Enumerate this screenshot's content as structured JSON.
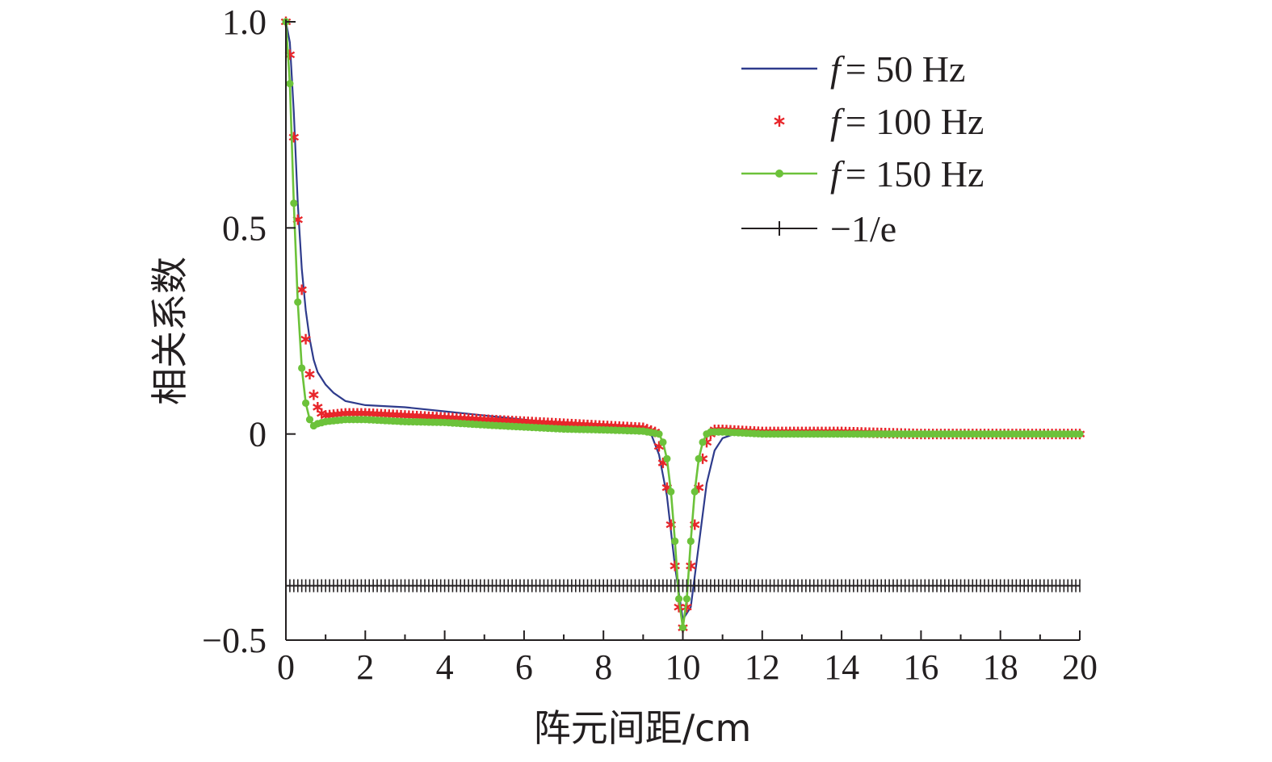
{
  "chart_data": {
    "type": "line",
    "title": "",
    "xlabel": "阵元间距/cm",
    "ylabel": "相关系数",
    "xlim": [
      0,
      20
    ],
    "ylim": [
      -0.5,
      1.0
    ],
    "xticks": [
      "0",
      "2",
      "4",
      "6",
      "8",
      "10",
      "12",
      "14",
      "16",
      "18",
      "20"
    ],
    "yticks": [
      "−0.5",
      "0",
      "0.5",
      "1.0"
    ],
    "legend_position": "top-right",
    "grid": false,
    "series": [
      {
        "name": "f = 50 Hz",
        "name_var": "f",
        "name_rest": "= 50 Hz",
        "color": "#2e3b8c",
        "marker": "none",
        "x": [
          0,
          0.1,
          0.2,
          0.3,
          0.4,
          0.5,
          0.6,
          0.7,
          0.8,
          1.0,
          1.2,
          1.5,
          2,
          3,
          4,
          5,
          6,
          7,
          8,
          9,
          9.2,
          9.4,
          9.6,
          9.8,
          10.0,
          10.2,
          10.4,
          10.6,
          10.8,
          11.0,
          11.3,
          12,
          14,
          16,
          18,
          20
        ],
        "y": [
          1.0,
          0.95,
          0.78,
          0.56,
          0.4,
          0.3,
          0.23,
          0.18,
          0.15,
          0.12,
          0.1,
          0.08,
          0.07,
          0.065,
          0.055,
          0.045,
          0.035,
          0.025,
          0.02,
          0.015,
          0.0,
          -0.05,
          -0.15,
          -0.32,
          -0.45,
          -0.42,
          -0.27,
          -0.12,
          -0.04,
          -0.01,
          0.0,
          0.0,
          0.0,
          0.0,
          0.0,
          0.0
        ]
      },
      {
        "name": "f = 100 Hz",
        "name_var": "f",
        "name_rest": "= 100 Hz",
        "color": "#e8262b",
        "marker": "asterisk",
        "x": [
          0,
          0.1,
          0.2,
          0.3,
          0.4,
          0.5,
          0.6,
          0.7,
          0.8,
          0.9,
          1.0,
          1.5,
          2,
          3,
          4,
          5,
          6,
          7,
          8,
          9,
          9.3,
          9.4,
          9.5,
          9.6,
          9.7,
          9.8,
          9.9,
          10.0,
          10.1,
          10.2,
          10.3,
          10.4,
          10.5,
          10.6,
          10.7,
          10.8,
          11.0,
          12,
          14,
          16,
          18,
          20
        ],
        "y": [
          1.0,
          0.92,
          0.72,
          0.52,
          0.35,
          0.23,
          0.145,
          0.095,
          0.065,
          0.05,
          0.045,
          0.05,
          0.05,
          0.045,
          0.04,
          0.035,
          0.03,
          0.025,
          0.02,
          0.015,
          0.005,
          -0.03,
          -0.07,
          -0.13,
          -0.22,
          -0.32,
          -0.42,
          -0.47,
          -0.42,
          -0.32,
          -0.22,
          -0.13,
          -0.06,
          -0.02,
          0.0,
          0.01,
          0.01,
          0.005,
          0.005,
          0.0,
          0.0,
          0.0
        ]
      },
      {
        "name": "f = 150 Hz",
        "name_var": "f",
        "name_rest": "= 150 Hz",
        "color": "#6cc23a",
        "marker": "dot",
        "x": [
          0,
          0.1,
          0.2,
          0.3,
          0.4,
          0.5,
          0.6,
          0.7,
          0.8,
          1.0,
          1.5,
          2,
          3,
          4,
          5,
          6,
          7,
          8,
          9,
          9.4,
          9.5,
          9.6,
          9.7,
          9.8,
          9.9,
          10.0,
          10.1,
          10.2,
          10.3,
          10.4,
          10.5,
          10.6,
          10.7,
          10.8,
          11.0,
          12,
          14,
          16,
          18,
          20
        ],
        "y": [
          1.0,
          0.85,
          0.56,
          0.32,
          0.16,
          0.075,
          0.035,
          0.02,
          0.025,
          0.03,
          0.035,
          0.035,
          0.03,
          0.028,
          0.022,
          0.017,
          0.012,
          0.01,
          0.007,
          0.0,
          -0.02,
          -0.06,
          -0.14,
          -0.26,
          -0.4,
          -0.47,
          -0.4,
          -0.26,
          -0.14,
          -0.06,
          -0.02,
          0.0,
          0.005,
          0.005,
          0.005,
          0.0,
          0.0,
          0.0,
          0.0,
          0.0
        ]
      },
      {
        "name": "−1/e",
        "color": "#231f20",
        "marker": "plus",
        "x": [
          0,
          20
        ],
        "y": [
          -0.368,
          -0.368
        ]
      }
    ]
  }
}
